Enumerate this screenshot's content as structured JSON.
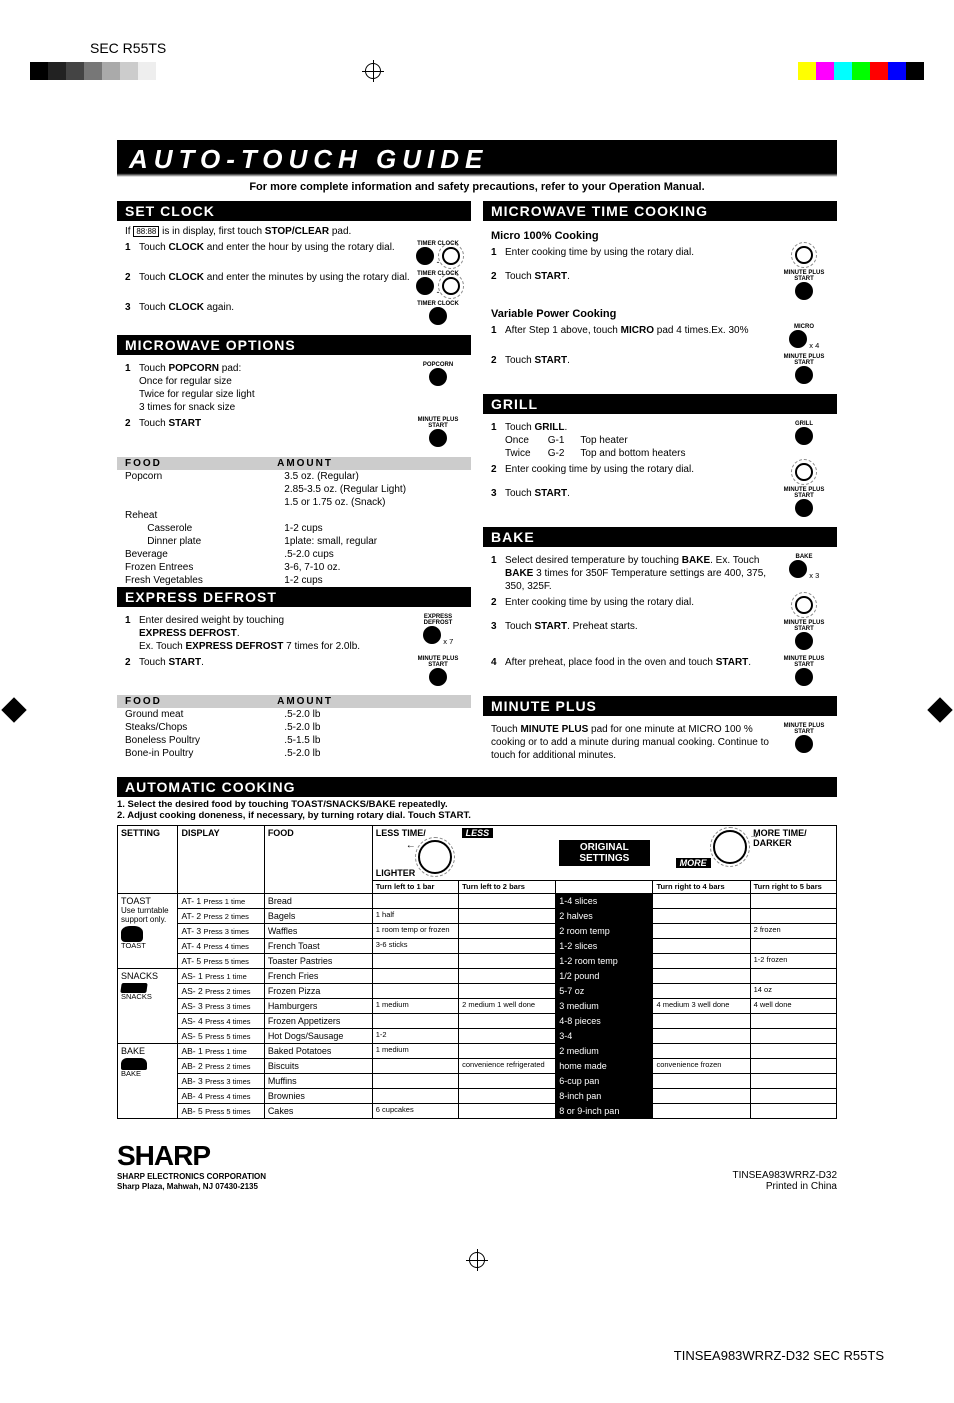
{
  "page": {
    "model_header": "SEC R55TS",
    "bottom_footer": "TINSEA983WRRZ-D32 SEC R55TS"
  },
  "title": "AUTO-TOUCH GUIDE",
  "subtitle": "For more complete information and safety precautions, refer to your Operation Manual.",
  "set_clock": {
    "header": "SET CLOCK",
    "intro_pre": "If ",
    "intro_box": "88:88",
    "intro_post": " is in display, first touch STOP/CLEAR pad.",
    "step1": "Touch CLOCK and enter the hour by using the rotary dial.",
    "step2": "Touch CLOCK and enter the minutes by using the rotary dial.",
    "step3": "Touch CLOCK again.",
    "icon1": "TIMER\nCLOCK",
    "icon2": "TIMER\nCLOCK",
    "icon3": "TIMER\nCLOCK"
  },
  "mw_options": {
    "header": "MICROWAVE OPTIONS",
    "step1a": "Touch POPCORN pad:",
    "step1b": "Once for regular size",
    "step1c": "Twice for regular size light",
    "step1d": "3 times for snack size",
    "step2": "Touch START",
    "icon1": "POPCORN",
    "icon2": "MINUTE PLUS\nSTART",
    "col_food": "FOOD",
    "col_amount": "AMOUNT",
    "rows": [
      {
        "f": "Popcorn",
        "a": "3.5 oz. (Regular)"
      },
      {
        "f": "",
        "a": "2.85-3.5 oz. (Regular Light)"
      },
      {
        "f": "",
        "a": "1.5 or 1.75 oz. (Snack)"
      },
      {
        "f": "Reheat",
        "a": ""
      },
      {
        "f": "        Casserole",
        "a": "1-2 cups"
      },
      {
        "f": "        Dinner plate",
        "a": "1plate: small, regular"
      },
      {
        "f": "Beverage",
        "a": ".5-2.0 cups"
      },
      {
        "f": "Frozen Entrees",
        "a": "3-6, 7-10 oz."
      },
      {
        "f": "Fresh Vegetables",
        "a": "1-2 cups"
      }
    ]
  },
  "express_defrost": {
    "header": "EXPRESS DEFROST",
    "step1a": "Enter desired weight by touching",
    "step1b": "EXPRESS DEFROST.",
    "step1c": "Ex. Touch EXPRESS DEFROST 7 times for 2.0lb.",
    "step2": "Touch START.",
    "icon1": "EXPRESS\nDEFROST",
    "icon1_sub": "x 7",
    "icon2": "MINUTE PLUS\nSTART",
    "col_food": "FOOD",
    "col_amount": "AMOUNT",
    "rows": [
      {
        "f": "Ground meat",
        "a": ".5-2.0 lb"
      },
      {
        "f": "Steaks/Chops",
        "a": ".5-2.0 lb"
      },
      {
        "f": "Boneless Poultry",
        "a": ".5-1.5 lb"
      },
      {
        "f": "Bone-in Poultry",
        "a": ".5-2.0 lb"
      }
    ]
  },
  "mw_time": {
    "header": "MICROWAVE TIME COOKING",
    "sub1": "Micro 100% Cooking",
    "s1_1": "Enter cooking time by using the rotary dial.",
    "s1_2": "Touch START.",
    "sub2": "Variable Power Cooking",
    "s2_1": "After Step 1 above, touch MICRO pad 4 times.Ex. 30%",
    "s2_2": "Touch START.",
    "icon_start": "MINUTE PLUS\nSTART",
    "icon_micro": "MICRO",
    "icon_micro_sub": "x 4"
  },
  "grill": {
    "header": "GRILL",
    "s1": "Touch GRILL.",
    "s1a": "Once",
    "s1a_code": "G-1",
    "s1a_txt": "Top heater",
    "s1b": "Twice",
    "s1b_code": "G-2",
    "s1b_txt": "Top and bottom heaters",
    "s2": "Enter cooking time by using the rotary dial.",
    "s3": "Touch START.",
    "icon_grill": "GRILL",
    "icon_start": "MINUTE PLUS\nSTART"
  },
  "bake": {
    "header": "BAKE",
    "s1": "Select desired temperature by touching BAKE. Ex. Touch BAKE 3 times for 350F Temperature settings are 400, 375, 350, 325F.",
    "s2": "Enter cooking time by using the rotary dial.",
    "s3": "Touch START. Preheat starts.",
    "s4": "After preheat, place food in the oven and touch START.",
    "icon_bake": "BAKE",
    "icon_bake_sub": "x 3",
    "icon_start": "MINUTE PLUS\nSTART"
  },
  "minute_plus": {
    "header": "MINUTE PLUS",
    "body": "Touch MINUTE PLUS pad for one minute at MICRO 100 % cooking or to add a minute during manual cooking. Continue to touch for additional minutes.",
    "icon": "MINUTE PLUS\nSTART"
  },
  "auto_cooking": {
    "header": "AUTOMATIC COOKING",
    "instr1": "1. Select the desired food by touching TOAST/SNACKS/BAKE repeatedly.",
    "instr2": "2. Adjust cooking doneness, if necessary, by turning rotary dial. Touch START.",
    "hdr_setting": "SETTING",
    "hdr_display": "DISPLAY",
    "hdr_food": "FOOD",
    "hdr_less_top": "LESS TIME/",
    "hdr_less_bot": "LIGHTER",
    "hdr_less_chip": "LESS",
    "hdr_more_chip": "MORE",
    "hdr_more_top": "MORE TIME/",
    "hdr_more_bot": "DARKER",
    "hdr_orig1": "ORIGINAL",
    "hdr_orig2": "SETTINGS",
    "hdr_turn_l1": "Turn left to 1 bar",
    "hdr_turn_l2": "Turn left to 2 bars",
    "hdr_turn_r1": "Turn right to 4 bars",
    "hdr_turn_r2": "Turn right to 5 bars",
    "toast_note": "Use turntable support only.",
    "settings": [
      {
        "setting": "TOAST",
        "icon": "toast",
        "sub": "TOAST",
        "rows": [
          {
            "disp": "AT- 1",
            "press": "Press 1 time",
            "food": "Bread",
            "l1": "",
            "l2": "",
            "orig": "1-4 slices",
            "r1": "",
            "r2": ""
          },
          {
            "disp": "AT- 2",
            "press": "Press 2 times",
            "food": "Bagels",
            "l1": "1 half",
            "l2": "",
            "orig": "2 halves",
            "r1": "",
            "r2": ""
          },
          {
            "disp": "AT- 3",
            "press": "Press 3 times",
            "food": "Waffles",
            "l1": "1 room temp or frozen",
            "l2": "",
            "orig": "2 room temp",
            "r1": "",
            "r2": "2 frozen"
          },
          {
            "disp": "AT- 4",
            "press": "Press 4 times",
            "food": "French Toast",
            "l1": "3-6 sticks",
            "l2": "",
            "orig": "1-2 slices",
            "r1": "",
            "r2": ""
          },
          {
            "disp": "AT- 5",
            "press": "Press 5 times",
            "food": "Toaster Pastries",
            "l1": "",
            "l2": "",
            "orig": "1-2 room temp",
            "r1": "",
            "r2": "1-2 frozen"
          }
        ]
      },
      {
        "setting": "SNACKS",
        "icon": "snack",
        "sub": "SNACKS",
        "rows": [
          {
            "disp": "AS- 1",
            "press": "Press 1 time",
            "food": "French Fries",
            "l1": "",
            "l2": "",
            "orig": "1/2 pound",
            "r1": "",
            "r2": ""
          },
          {
            "disp": "AS- 2",
            "press": "Press 2 times",
            "food": "Frozen Pizza",
            "l1": "",
            "l2": "",
            "orig": "5-7 oz",
            "r1": "",
            "r2": "14 oz"
          },
          {
            "disp": "AS- 3",
            "press": "Press 3 times",
            "food": "Hamburgers",
            "l1": "1 medium",
            "l2": "2 medium  1 well done",
            "orig": "3 medium",
            "r1": "4 medium  3 well done",
            "r2": "4 well done"
          },
          {
            "disp": "AS- 4",
            "press": "Press 4 times",
            "food": "Frozen Appetizers",
            "l1": "",
            "l2": "",
            "orig": "4-8 pieces",
            "r1": "",
            "r2": ""
          },
          {
            "disp": "AS- 5",
            "press": "Press 5 times",
            "food": "Hot Dogs/Sausage",
            "l1": "1-2",
            "l2": "",
            "orig": "3-4",
            "r1": "",
            "r2": ""
          }
        ]
      },
      {
        "setting": "BAKE",
        "icon": "bake",
        "sub": "BAKE",
        "rows": [
          {
            "disp": "AB- 1",
            "press": "Press 1 time",
            "food": "Baked Potatoes",
            "l1": "1 medium",
            "l2": "",
            "orig": "2 medium",
            "r1": "",
            "r2": ""
          },
          {
            "disp": "AB- 2",
            "press": "Press 2 times",
            "food": "Biscuits",
            "l1": "",
            "l2": "convenience refrigerated",
            "orig": "home made",
            "r1": "convenience frozen",
            "r2": ""
          },
          {
            "disp": "AB- 3",
            "press": "Press 3 times",
            "food": "Muffins",
            "l1": "",
            "l2": "",
            "orig": "6-cup pan",
            "r1": "",
            "r2": ""
          },
          {
            "disp": "AB- 4",
            "press": "Press 4 times",
            "food": "Brownies",
            "l1": "",
            "l2": "",
            "orig": "8-inch pan",
            "r1": "",
            "r2": ""
          },
          {
            "disp": "AB- 5",
            "press": "Press 5 times",
            "food": "Cakes",
            "l1": "6 cupcakes",
            "l2": "",
            "orig": "8 or 9-inch pan",
            "r1": "",
            "r2": ""
          }
        ]
      }
    ]
  },
  "footer": {
    "logo": "SHARP",
    "corp1": "SHARP ELECTRONICS CORPORATION",
    "corp2": "Sharp Plaza, Mahwah, NJ 07430-2135",
    "code": "TINSEA983WRRZ-D32",
    "printed": "Printed in China"
  },
  "colors": {
    "bar_left": [
      "#000",
      "#000",
      "#555",
      "#888",
      "#aaa",
      "#ccc",
      "#eee"
    ],
    "bar_right": [
      "#ff0",
      "#f0f",
      "#0ff",
      "#0f0",
      "#f00",
      "#00f",
      "#000"
    ]
  }
}
